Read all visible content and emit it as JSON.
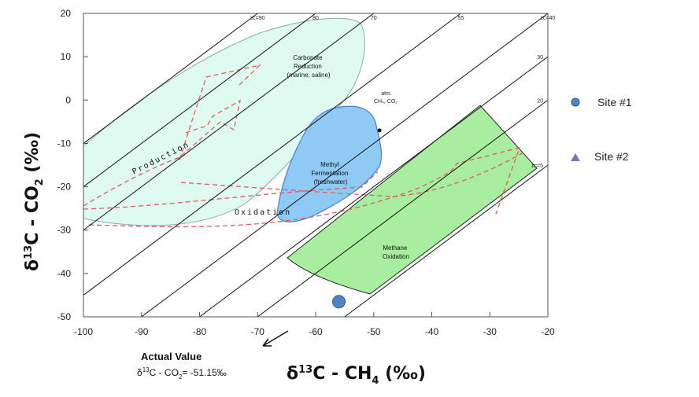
{
  "colors": {
    "carbonate": "#dffaf0",
    "carbonate_stroke": "#8aa",
    "methyl": "#8fcaf5",
    "methyl_stroke": "#4a7fd6",
    "oxidation_box": "#a9eda0",
    "oxidation_stroke": "#222",
    "dashed": "#e45a5a",
    "site1": "#4f84c4",
    "site2": "#8e6bbd",
    "iso": "#111"
  },
  "chart_data": {
    "type": "scatter",
    "xlabel": "δ13C - CH4 (‰)",
    "ylabel": "δ13C - CO2 (‰)",
    "xlim": [
      -100,
      -20
    ],
    "ylim": [
      -50,
      20
    ],
    "x_ticks": [
      "-100",
      "-90",
      "-80",
      "-70",
      "-60",
      "-50",
      "-40",
      "-30",
      "-20"
    ],
    "y_ticks": [
      "20",
      "10",
      "0",
      "-10",
      "-20",
      "-30",
      "-40",
      "-50"
    ],
    "series": [
      {
        "name": "Site #1",
        "marker": "circle",
        "points": [
          [
            -56,
            -46.5
          ]
        ]
      },
      {
        "name": "Site #2",
        "marker": "triangle",
        "points": []
      }
    ],
    "isotope_lines": [
      {
        "label": "εc=90",
        "epsilon": 90
      },
      {
        "label": "80",
        "epsilon": 80
      },
      {
        "label": "70",
        "epsilon": 70
      },
      {
        "label": "55",
        "epsilon": 55
      },
      {
        "label": "εc=40",
        "epsilon": 40
      },
      {
        "label": "30",
        "epsilon": 30
      },
      {
        "label": "20",
        "epsilon": 20
      },
      {
        "label": "εc=5",
        "epsilon": 5
      }
    ],
    "regions": [
      {
        "name": "Carbonate Reduction",
        "label_lines": [
          "Carbonate",
          "Reduction",
          "(marine, saline)"
        ]
      },
      {
        "name": "Methyl Fermentation",
        "label_lines": [
          "Methyl",
          "Fermentation",
          "(freshwater)"
        ]
      },
      {
        "name": "Methane Oxidation",
        "label_lines": [
          "Methane",
          "Oxidation"
        ]
      }
    ],
    "process_labels": {
      "production": "Production",
      "oxidation": "Oxidation"
    },
    "atm_label_lines": [
      "atm.",
      "CH₄, CO₂"
    ],
    "atm_point": [
      -49,
      -7
    ],
    "legend_position": "right",
    "annotation": {
      "title": "Actual Value",
      "text": "δ13C - CO2= -51.15‰"
    },
    "grid": false
  }
}
